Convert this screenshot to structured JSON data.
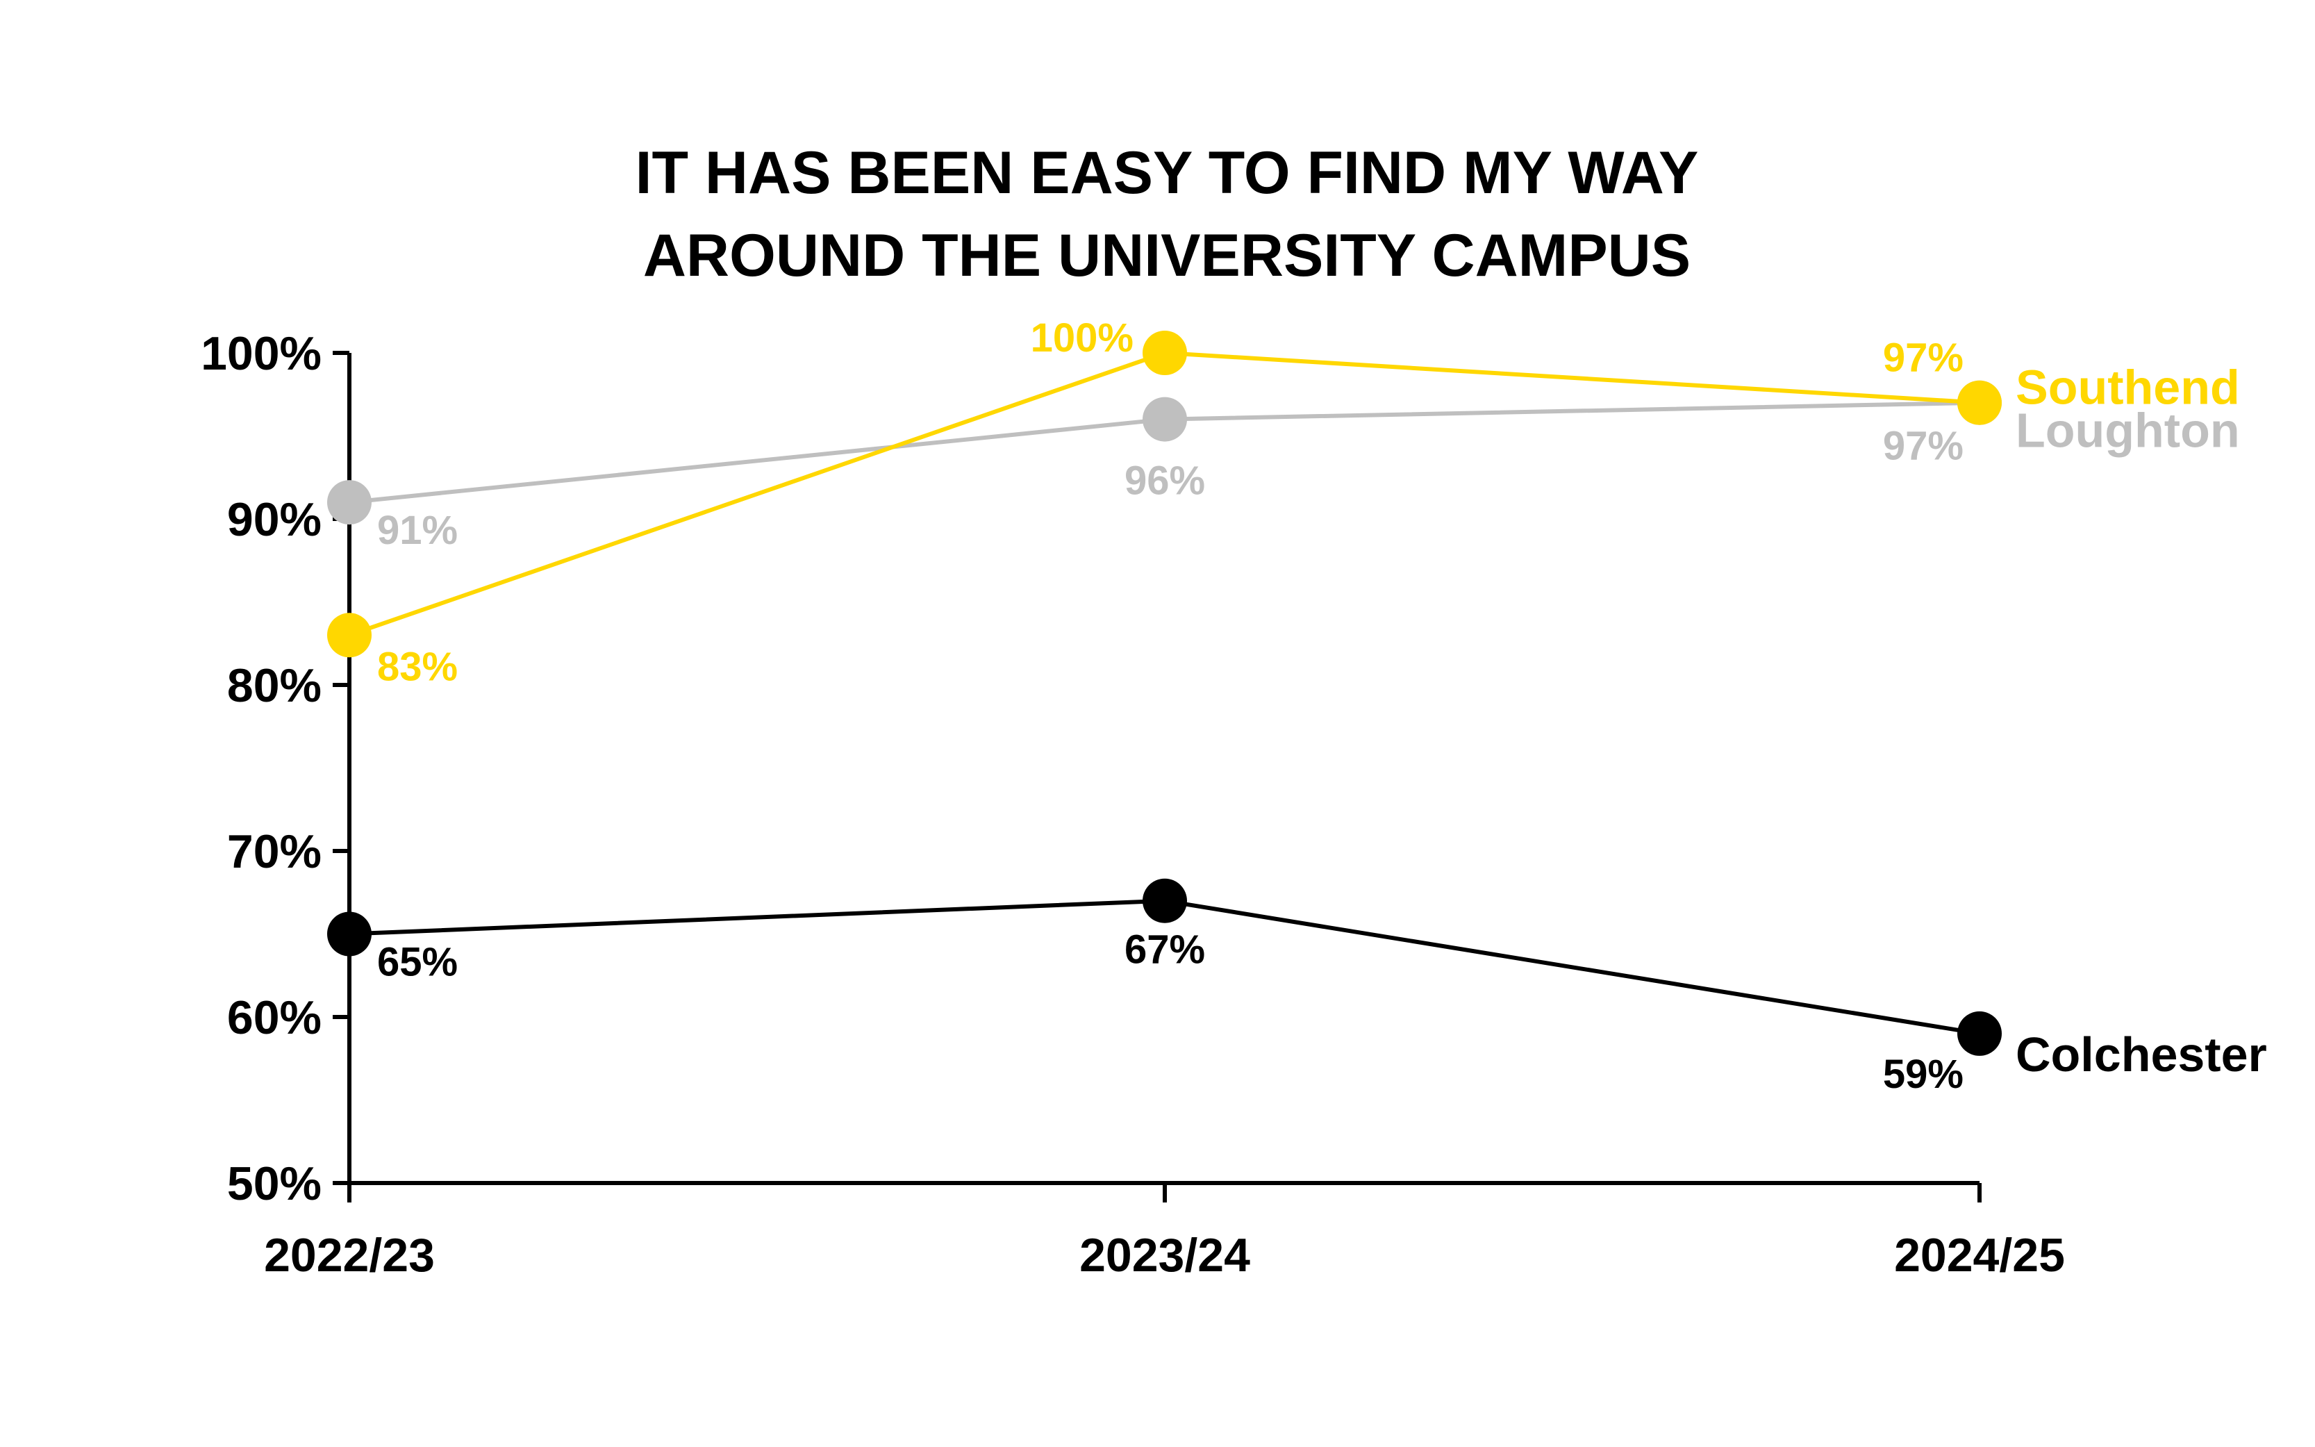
{
  "chart_data": {
    "type": "line",
    "title": [
      "IT HAS BEEN EASY TO FIND MY WAY",
      "AROUND THE UNIVERSITY CAMPUS"
    ],
    "categories": [
      "2022/23",
      "2023/24",
      "2024/25"
    ],
    "ylim": [
      50,
      100
    ],
    "yticks": [
      50,
      60,
      70,
      80,
      90,
      100
    ],
    "ytick_labels": [
      "50%",
      "60%",
      "70%",
      "80%",
      "90%",
      "100%"
    ],
    "grid": false,
    "legend": "direct labels at right end of lines",
    "series": [
      {
        "name": "Loughton",
        "color": "#bfbfbf",
        "values": [
          91,
          96,
          97
        ],
        "labels": [
          "91%",
          "96%",
          "97%"
        ]
      },
      {
        "name": "Southend",
        "color": "#ffd700",
        "values": [
          83,
          100,
          97
        ],
        "labels": [
          "83%",
          "100%",
          "97%"
        ]
      },
      {
        "name": "Colchester",
        "color": "#000000",
        "values": [
          65,
          67,
          59
        ],
        "labels": [
          "65%",
          "67%",
          "59%"
        ]
      }
    ]
  }
}
